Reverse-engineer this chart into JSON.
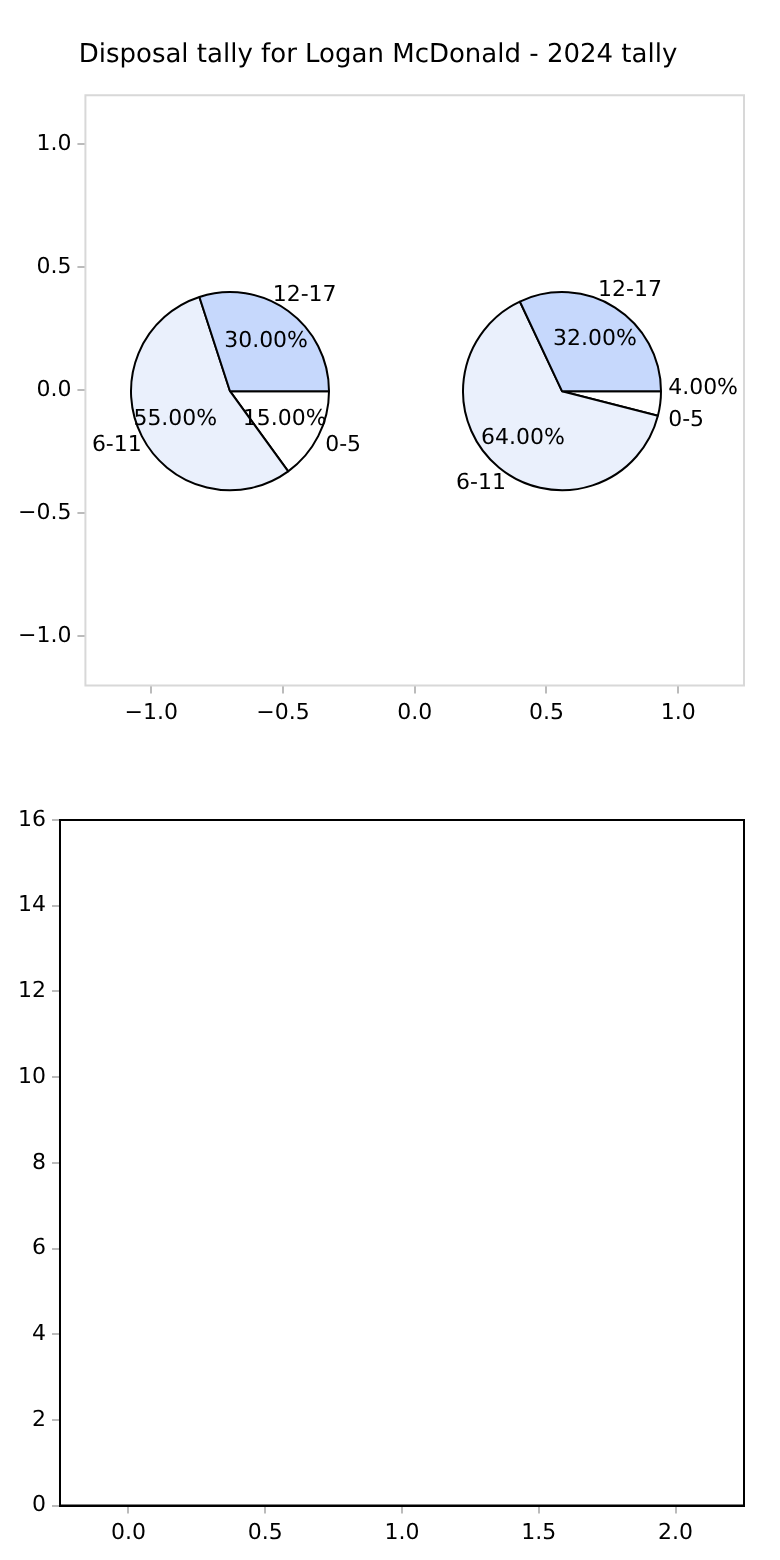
{
  "chart_data": [
    {
      "type": "scatter",
      "title": "Disposal tally for Logan McDonald - 2024 tally",
      "xlim": [
        -1.25,
        1.25
      ],
      "ylim": [
        -1.2,
        1.2
      ],
      "xticks": [
        {
          "value": -1,
          "label": "−1.0"
        },
        {
          "value": -0.5,
          "label": "−0.5"
        },
        {
          "value": 0,
          "label": "0.0"
        },
        {
          "value": 0.5,
          "label": "0.5"
        },
        {
          "value": 1,
          "label": "1.0"
        }
      ],
      "yticks": [
        {
          "value": -1,
          "label": "−1.0"
        },
        {
          "value": -0.5,
          "label": "−0.5"
        },
        {
          "value": 0,
          "label": "0.0"
        },
        {
          "value": 0.5,
          "label": "0.5"
        },
        {
          "value": 1,
          "label": "1.0"
        }
      ]
    },
    {
      "type": "pie",
      "categories": [
        "0-5",
        "6-11",
        "12-17"
      ],
      "colors": [
        "#ffffff",
        "#eaf0fc",
        "#c6d8fc"
      ],
      "values": [
        15,
        55,
        30
      ],
      "value_labels": [
        "15.00%",
        "55.00%",
        "30.00%"
      ]
    },
    {
      "type": "pie",
      "categories": [
        "0-5",
        "6-11",
        "12-17"
      ],
      "colors": [
        "#ffffff",
        "#eaf0fc",
        "#c6d8fc"
      ],
      "values": [
        4,
        64,
        32
      ],
      "value_labels": [
        "4.00%",
        "64.00%",
        "32.00%"
      ]
    },
    {
      "type": "scatter",
      "xlim": [
        -0.25,
        2.25
      ],
      "ylim": [
        0,
        16
      ],
      "xticks": [
        {
          "value": 0,
          "label": "0.0"
        },
        {
          "value": 0.5,
          "label": "0.5"
        },
        {
          "value": 1,
          "label": "1.0"
        },
        {
          "value": 1.5,
          "label": "1.5"
        },
        {
          "value": 2,
          "label": "2.0"
        }
      ],
      "yticks": [
        0,
        2,
        4,
        6,
        8,
        10,
        12,
        14,
        16
      ]
    }
  ]
}
